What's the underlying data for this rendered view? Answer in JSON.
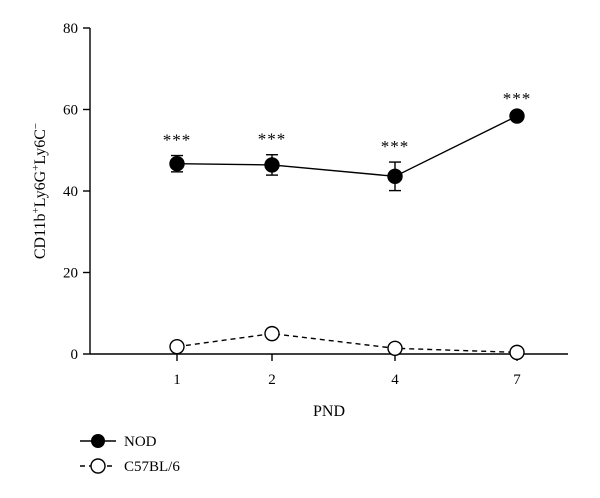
{
  "chart_data": {
    "type": "line",
    "xlabel": "PND",
    "ylabel": {
      "base": "CD11b",
      "sup1": "+",
      "mid1": "Ly6G",
      "sup2": "+",
      "mid2": "Ly6C",
      "sup3": "−"
    },
    "categories": [
      "1",
      "2",
      "4",
      "7"
    ],
    "ylim": [
      0,
      80
    ],
    "yticks": [
      0,
      20,
      40,
      60,
      80
    ],
    "grid": false,
    "legend_position": "bottom-left",
    "series": [
      {
        "name": "NOD",
        "marker": "filled-circle",
        "line_style": "solid",
        "values": [
          46.7,
          46.4,
          43.6,
          58.4
        ],
        "error": [
          2.0,
          2.5,
          3.5,
          0.5
        ],
        "annotations": [
          "***",
          "***",
          "***",
          "***"
        ]
      },
      {
        "name": "C57BL/6",
        "marker": "open-circle",
        "line_style": "dashed",
        "values": [
          1.8,
          5.0,
          1.4,
          0.4
        ],
        "error": [
          0,
          0,
          0,
          0
        ]
      }
    ]
  },
  "colors": {
    "axis": "#000000",
    "marker": "#000000",
    "background": "#ffffff"
  }
}
